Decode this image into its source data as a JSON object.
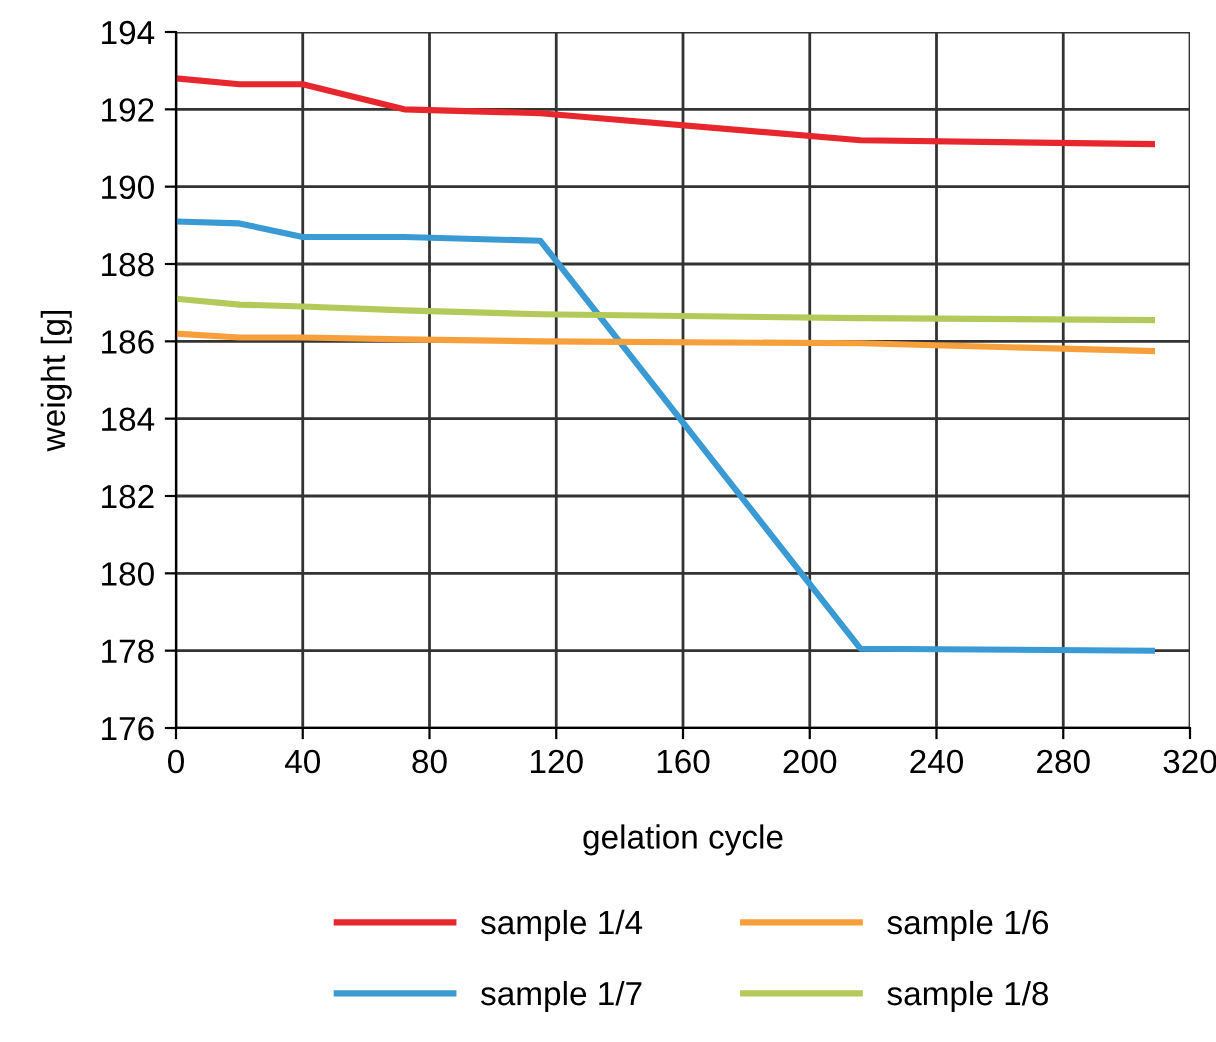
{
  "chart_data": {
    "type": "line",
    "xlabel": "gelation cycle",
    "ylabel": "weight [g]",
    "xlim": [
      0,
      320
    ],
    "xticks": [
      0,
      40,
      80,
      120,
      160,
      200,
      240,
      280,
      320
    ],
    "ylim": [
      176,
      194
    ],
    "yticks": [
      176,
      178,
      180,
      182,
      184,
      186,
      188,
      190,
      192,
      194
    ],
    "grid": true,
    "legend": "bottom",
    "marker": "none",
    "line_style": "solid",
    "series": [
      {
        "name": "sample 1/4",
        "color": "#e8262d",
        "x": [
          0,
          20,
          40,
          72,
          115,
          216,
          308
        ],
        "values": [
          192.8,
          192.65,
          192.65,
          192.0,
          191.9,
          191.2,
          191.1
        ]
      },
      {
        "name": "sample 1/7",
        "color": "#3a9ad4",
        "x": [
          0,
          20,
          40,
          72,
          115,
          216,
          308
        ],
        "values": [
          189.1,
          189.05,
          188.7,
          188.7,
          188.6,
          178.05,
          178.0
        ]
      },
      {
        "name": "sample 1/6",
        "color": "#f7a03b",
        "x": [
          0,
          20,
          40,
          72,
          115,
          216,
          308
        ],
        "values": [
          186.2,
          186.1,
          186.1,
          186.05,
          186.0,
          185.95,
          185.75
        ]
      },
      {
        "name": "sample 1/8",
        "color": "#b3c95a",
        "x": [
          0,
          20,
          40,
          72,
          115,
          216,
          308
        ],
        "values": [
          187.1,
          186.95,
          186.9,
          186.8,
          186.7,
          186.6,
          186.55
        ]
      }
    ]
  }
}
